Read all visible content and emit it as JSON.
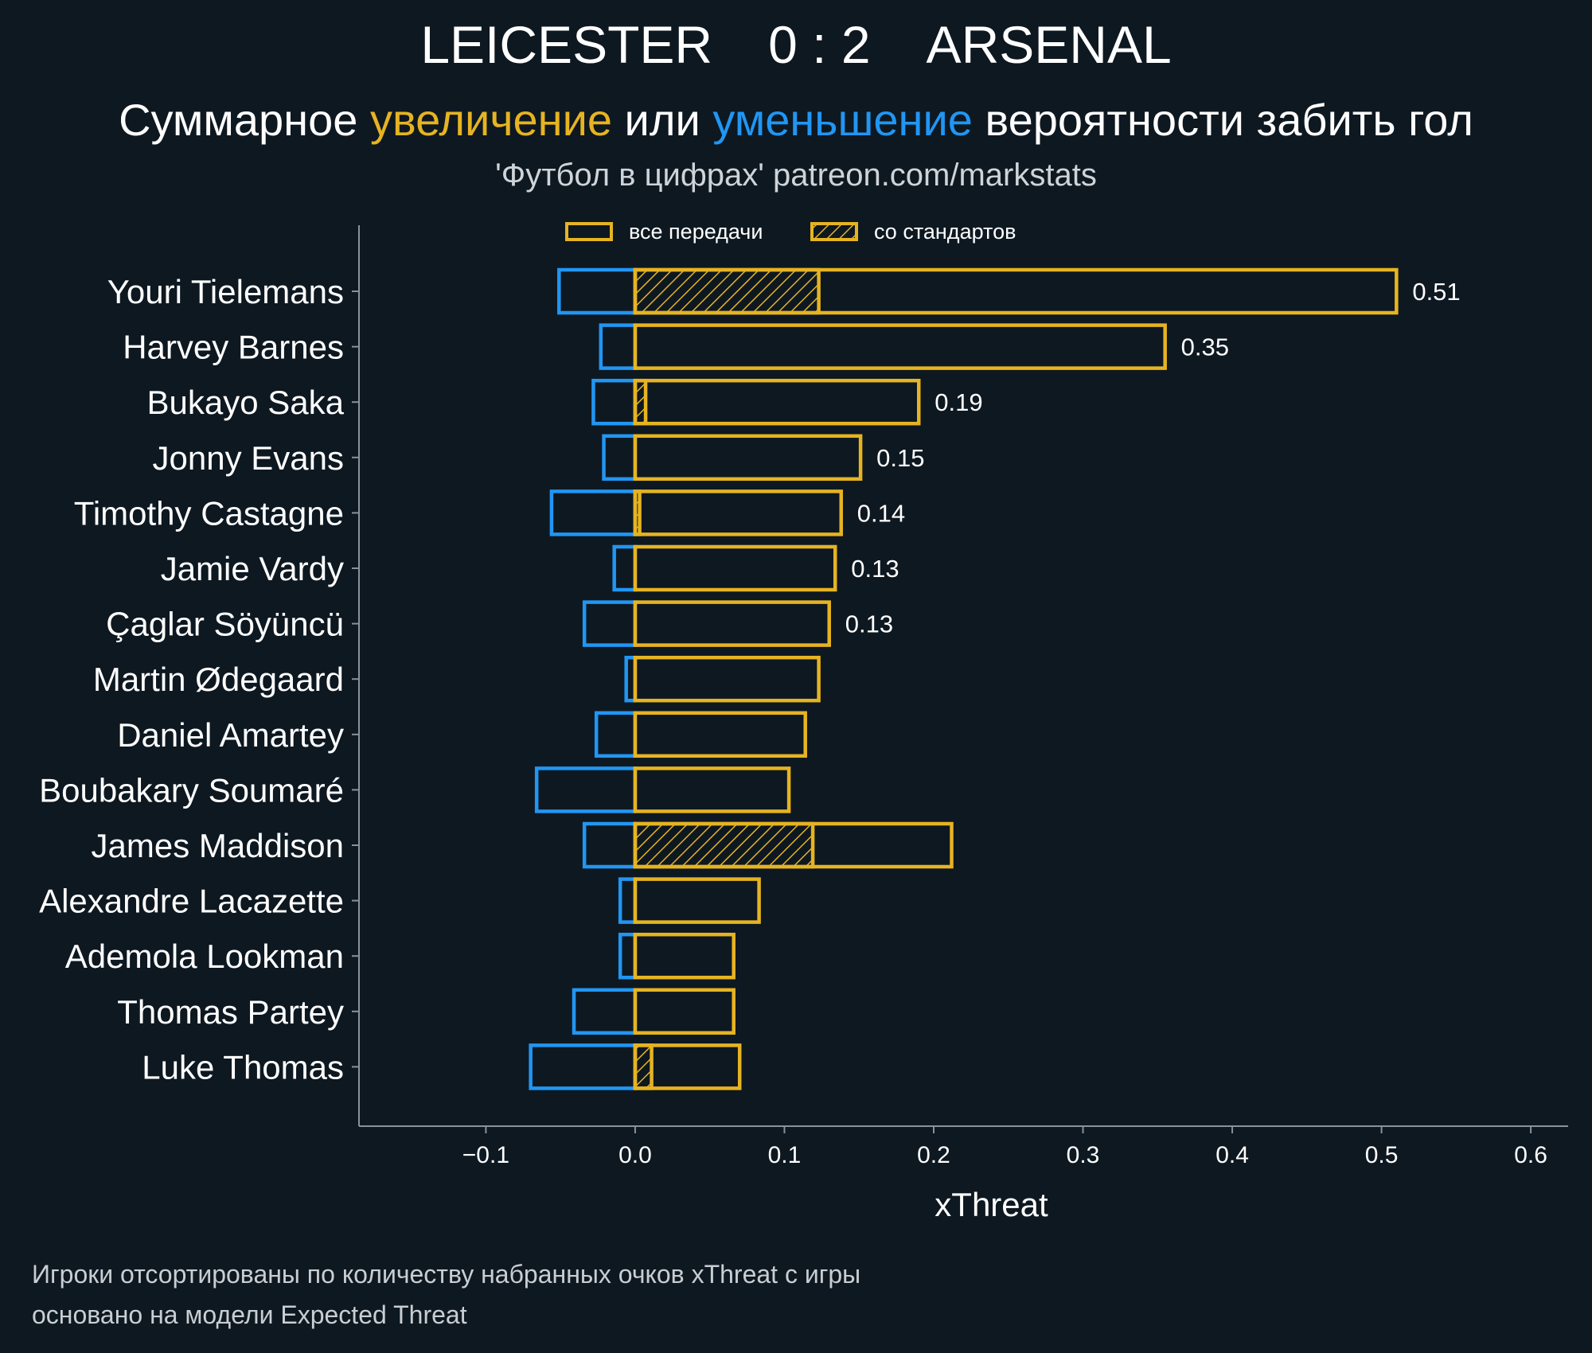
{
  "header": {
    "home_team": "LEICESTER",
    "score": "0 : 2",
    "away_team": "ARSENAL",
    "subtitle_part1": "Суммарное ",
    "subtitle_increase": "увеличение",
    "subtitle_part2": " или ",
    "subtitle_decrease": "уменьшение",
    "subtitle_part3": " вероятности забить гол",
    "source": "'Футбол в цифрах' patreon.com/markstats"
  },
  "footnotes": {
    "line1": "Игроки отсортированы по количеству набранных очков xThreat с игры",
    "line2": "основано на модели Expected Threat"
  },
  "colors": {
    "background": "#0e1821",
    "increase": "#e6b422",
    "decrease": "#2196f3",
    "axis": "#8a9299"
  },
  "chart_data": {
    "type": "bar",
    "orientation": "horizontal",
    "xlabel": "xThreat",
    "xlim": [
      -0.185,
      0.625
    ],
    "xticks": [
      -0.1,
      0.0,
      0.1,
      0.2,
      0.3,
      0.4,
      0.5,
      0.6
    ],
    "xtick_labels": [
      "−0.1",
      "0.0",
      "0.1",
      "0.2",
      "0.3",
      "0.4",
      "0.5",
      "0.6"
    ],
    "legend": {
      "position": "top",
      "entries": [
        "все передачи",
        "со стандартов"
      ]
    },
    "categories": [
      "Youri Tielemans",
      "Harvey Barnes",
      "Bukayo Saka",
      "Jonny Evans",
      "Timothy Castagne",
      "Jamie Vardy",
      "Çaglar Söyüncü",
      "Martin Ødegaard",
      "Daniel Amartey",
      "Boubakary Soumaré",
      "James Maddison",
      "Alexandre Lacazette",
      "Ademola Lookman",
      "Thomas Partey",
      "Luke Thomas"
    ],
    "series": [
      {
        "name": "все передачи",
        "values": [
          0.51,
          0.355,
          0.19,
          0.151,
          0.138,
          0.134,
          0.13,
          0.123,
          0.114,
          0.103,
          0.212,
          0.083,
          0.066,
          0.066,
          0.07
        ]
      },
      {
        "name": "со стандартов",
        "values": [
          0.123,
          0.0,
          0.007,
          0.0,
          0.003,
          0.0,
          0.0,
          0.0,
          0.0,
          0.0,
          0.119,
          0.0,
          0.0,
          0.0,
          0.011
        ]
      },
      {
        "values": [
          -0.051,
          -0.023,
          -0.028,
          -0.021,
          -0.056,
          -0.014,
          -0.034,
          -0.006,
          -0.026,
          -0.066,
          -0.034,
          -0.01,
          -0.01,
          -0.041,
          -0.07
        ]
      }
    ],
    "value_labels": [
      "0.51",
      "0.35",
      "0.19",
      "0.15",
      "0.14",
      "0.13",
      "0.13",
      "",
      "",
      "",
      "",
      "",
      "",
      "",
      ""
    ]
  }
}
